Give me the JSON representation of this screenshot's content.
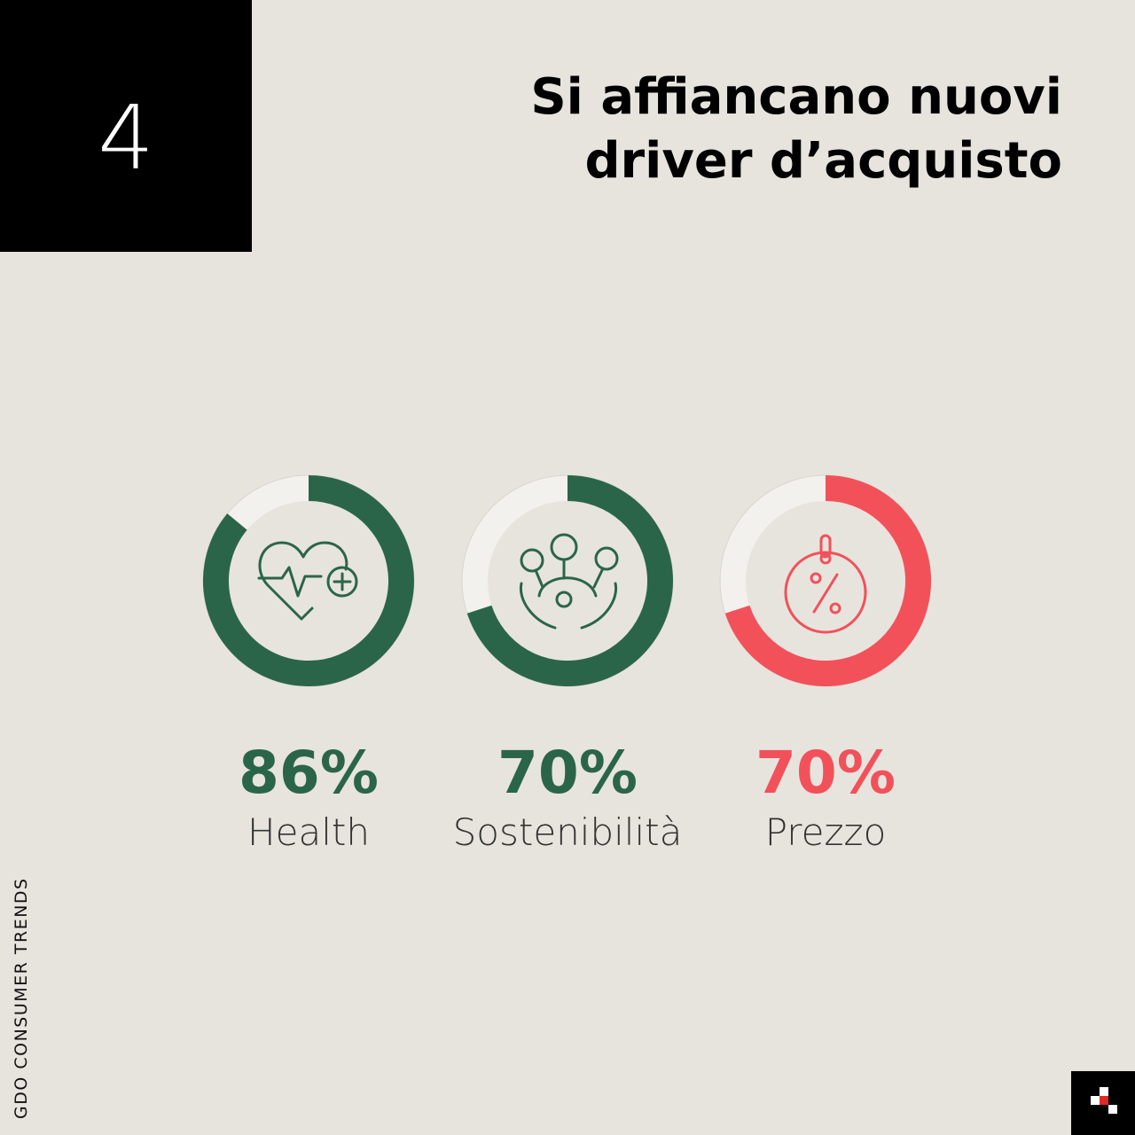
{
  "header": {
    "number": "4",
    "title": [
      "Si affiancano nuovi",
      "driver d’acquisto"
    ]
  },
  "sidebar": "GDO CONSUMER TRENDS",
  "chart_data": [
    {
      "type": "donut",
      "categories": [
        "Health"
      ],
      "values": [
        86
      ],
      "value_labels": [
        "86%"
      ],
      "ylim": [
        0,
        100
      ],
      "color": "#2b6549"
    },
    {
      "type": "donut",
      "categories": [
        "Sostenibilità"
      ],
      "values": [
        70
      ],
      "value_labels": [
        "70%"
      ],
      "ylim": [
        0,
        100
      ],
      "color": "#2b6549"
    },
    {
      "type": "donut",
      "categories": [
        "Prezzo"
      ],
      "values": [
        70
      ],
      "value_labels": [
        "70%"
      ],
      "ylim": [
        0,
        100
      ],
      "color": "#f2515a"
    }
  ]
}
